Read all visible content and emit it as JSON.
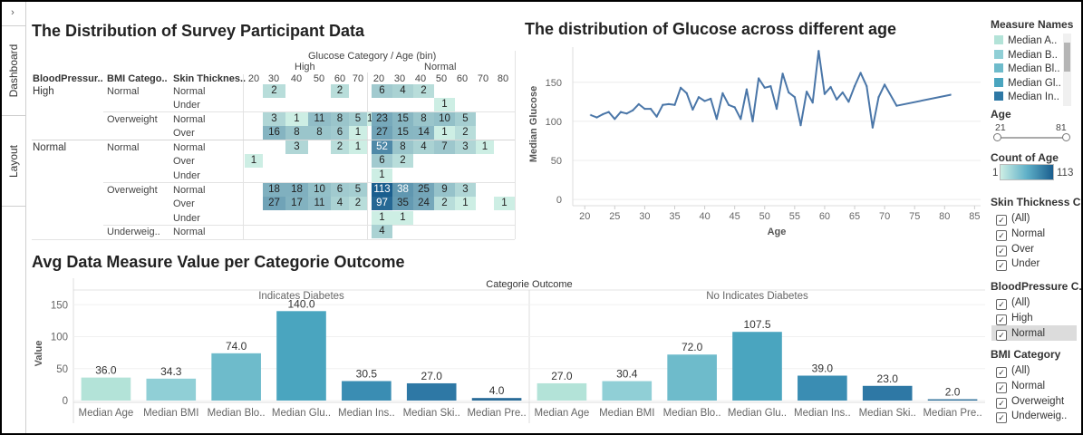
{
  "nav": {
    "toggle": "›",
    "tabs": [
      "Dashboard",
      "Layout"
    ]
  },
  "colors": {
    "scale": [
      "#cdeee4",
      "#1a5e8e"
    ],
    "line": "#4a76a8",
    "bars": [
      "#b3e3d8",
      "#90cfd6",
      "#6ebbcb",
      "#4aa5bf",
      "#3a8db3",
      "#2e78a5",
      "#296b98"
    ]
  },
  "heatmap": {
    "title": "The Distribution of Survey Participant Data",
    "header": "Glucose Category  /  Age (bin)",
    "groups": [
      "High",
      "Normal"
    ],
    "bins": [
      "20",
      "30",
      "40",
      "50",
      "60",
      "70",
      "20",
      "30",
      "40",
      "50",
      "60",
      "70",
      "80"
    ],
    "col_headers": [
      "BloodPressur..",
      "BMI Catego..",
      "Skin Thicknes.."
    ],
    "bp": [
      "High",
      "Normal"
    ],
    "bmi": [
      "Normal",
      "Overweight",
      "Normal",
      "Overweight",
      "Underweig.."
    ],
    "skin": [
      "Normal",
      "Under",
      "Normal",
      "Over",
      "Normal",
      "Over",
      "Under",
      "Normal",
      "Over",
      "Under",
      "Normal"
    ],
    "rows": [
      [
        null,
        2,
        null,
        null,
        2,
        null,
        null,
        6,
        4,
        2,
        null,
        null,
        null
      ],
      [
        null,
        null,
        null,
        null,
        null,
        null,
        null,
        null,
        null,
        null,
        1,
        null,
        null
      ],
      [
        null,
        3,
        1,
        11,
        8,
        5,
        1,
        23,
        15,
        8,
        10,
        5,
        null
      ],
      [
        null,
        16,
        8,
        8,
        6,
        1,
        null,
        27,
        15,
        14,
        1,
        2,
        null
      ],
      [
        null,
        null,
        3,
        null,
        2,
        1,
        null,
        52,
        8,
        4,
        7,
        3,
        1
      ],
      [
        1,
        null,
        null,
        null,
        null,
        null,
        null,
        6,
        2,
        null,
        null,
        null,
        null
      ],
      [
        null,
        null,
        null,
        null,
        null,
        null,
        null,
        1,
        null,
        null,
        null,
        null,
        null
      ],
      [
        null,
        18,
        18,
        10,
        6,
        5,
        null,
        113,
        38,
        25,
        9,
        3,
        null
      ],
      [
        null,
        27,
        17,
        11,
        4,
        2,
        null,
        97,
        35,
        24,
        2,
        1,
        null
      ],
      [
        null,
        null,
        null,
        null,
        null,
        null,
        null,
        1,
        1,
        null,
        null,
        null,
        null
      ],
      [
        null,
        null,
        null,
        null,
        null,
        null,
        null,
        4,
        null,
        null,
        null,
        null,
        null
      ]
    ],
    "extra": [
      {
        "row": 8,
        "value": 1
      }
    ]
  },
  "chart_data": [
    {
      "type": "line",
      "title": "The distribution of Glucose across different age",
      "xlabel": "Age",
      "ylabel": "Median Glucose",
      "xticks": [
        "20",
        "25",
        "30",
        "35",
        "40",
        "45",
        "50",
        "55",
        "60",
        "65",
        "70",
        "75",
        "80",
        "85"
      ],
      "yticks": [
        "0",
        "50",
        "100",
        "150"
      ],
      "xlim": [
        18,
        86
      ],
      "ylim": [
        -8,
        195
      ],
      "x": [
        21,
        22,
        23,
        24,
        25,
        26,
        27,
        28,
        29,
        30,
        31,
        32,
        33,
        34,
        35,
        36,
        37,
        38,
        39,
        40,
        41,
        42,
        43,
        44,
        45,
        46,
        47,
        48,
        49,
        50,
        51,
        52,
        53,
        54,
        55,
        56,
        57,
        58,
        59,
        60,
        61,
        62,
        63,
        64,
        65,
        66,
        67,
        68,
        69,
        70,
        72,
        81
      ],
      "y": [
        108,
        105,
        109,
        112,
        103,
        112,
        110,
        114,
        122,
        116,
        116,
        106,
        121,
        122,
        121,
        143,
        136,
        115,
        131,
        126,
        129,
        103,
        136,
        121,
        118,
        103,
        141,
        100,
        155,
        143,
        145,
        116,
        161,
        137,
        131,
        95,
        138,
        124,
        190,
        135,
        144,
        128,
        137,
        125,
        145,
        162,
        145,
        92,
        131,
        147,
        120,
        134
      ]
    },
    {
      "type": "bar",
      "title": "Avg Data Measure Value per Categorie Outcome",
      "header": "Categorie Outcome",
      "ylabel": "Value",
      "yticks": [
        "0",
        "50",
        "100",
        "150"
      ],
      "ylim": [
        0,
        150
      ],
      "panels": [
        {
          "name": "Indicates Diabetes",
          "categories": [
            "Median Age",
            "Median BMI",
            "Median Blo..",
            "Median Glu..",
            "Median Ins..",
            "Median Ski..",
            "Median Pre.."
          ],
          "values": [
            36.0,
            34.3,
            74.0,
            140.0,
            30.5,
            27.0,
            4.0
          ],
          "labels": [
            "36.0",
            "34.3",
            "74.0",
            "140.0",
            "30.5",
            "27.0",
            "4.0"
          ]
        },
        {
          "name": "No Indicates Diabetes",
          "categories": [
            "Median Age",
            "Median BMI",
            "Median Blo..",
            "Median Glu..",
            "Median Ins..",
            "Median Ski..",
            "Median Pre.."
          ],
          "values": [
            27.0,
            30.4,
            72.0,
            107.5,
            39.0,
            23.0,
            2.0
          ],
          "labels": [
            "27.0",
            "30.4",
            "72.0",
            "107.5",
            "39.0",
            "23.0",
            "2.0"
          ]
        }
      ]
    }
  ],
  "filters": {
    "measure_names": {
      "title": "Measure Names",
      "items": [
        "Median A..",
        "Median B..",
        "Median Bl..",
        "Median Gl..",
        "Median In.."
      ],
      "colors": [
        "#b3e3d8",
        "#90cfd6",
        "#6ebbcb",
        "#4aa5bf",
        "#2e78a5"
      ]
    },
    "age": {
      "title": "Age",
      "min": "21",
      "max": "81"
    },
    "count_of_age": {
      "title": "Count of Age",
      "min": "1",
      "max": "113"
    },
    "skin": {
      "title": "Skin Thickness C..",
      "items": [
        "(All)",
        "Normal",
        "Over",
        "Under"
      ]
    },
    "bp": {
      "title": "BloodPressure C..",
      "items": [
        "(All)",
        "High",
        "Normal"
      ]
    },
    "bmi": {
      "title": "BMI Category",
      "items": [
        "(All)",
        "Normal",
        "Overweight",
        "Underweig.."
      ]
    }
  }
}
